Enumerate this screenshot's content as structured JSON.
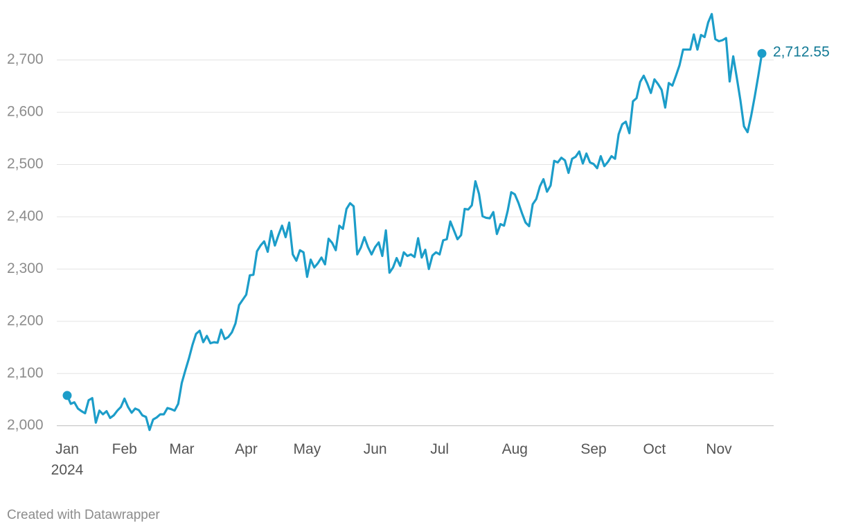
{
  "chart_data": {
    "type": "line",
    "categories": [
      "Jan\n2024",
      null,
      null,
      null,
      null,
      null,
      null,
      null,
      null,
      null,
      null,
      null,
      null,
      null,
      null,
      null,
      "Feb",
      null,
      null,
      null,
      null,
      null,
      null,
      null,
      null,
      null,
      null,
      null,
      null,
      null,
      null,
      null,
      "Mar",
      null,
      null,
      null,
      null,
      null,
      null,
      null,
      null,
      null,
      null,
      null,
      null,
      null,
      null,
      null,
      null,
      null,
      "Apr",
      null,
      null,
      null,
      null,
      null,
      null,
      null,
      null,
      null,
      null,
      null,
      null,
      null,
      null,
      null,
      null,
      "May",
      null,
      null,
      null,
      null,
      null,
      null,
      null,
      null,
      null,
      null,
      null,
      null,
      null,
      null,
      null,
      null,
      null,
      null,
      "Jun",
      null,
      null,
      null,
      null,
      null,
      null,
      null,
      null,
      null,
      null,
      null,
      null,
      null,
      null,
      null,
      null,
      null,
      "Jul",
      null,
      null,
      null,
      null,
      null,
      null,
      null,
      null,
      null,
      null,
      null,
      null,
      null,
      null,
      null,
      null,
      null,
      null,
      null,
      null,
      "Aug",
      null,
      null,
      null,
      null,
      null,
      null,
      null,
      null,
      null,
      null,
      null,
      null,
      null,
      null,
      null,
      null,
      null,
      null,
      null,
      null,
      null,
      "Sep",
      null,
      null,
      null,
      null,
      null,
      null,
      null,
      null,
      null,
      null,
      null,
      null,
      null,
      null,
      null,
      null,
      "Oct",
      null,
      null,
      null,
      null,
      null,
      null,
      null,
      null,
      null,
      null,
      null,
      null,
      null,
      null,
      null,
      null,
      null,
      "Nov",
      null,
      null,
      null,
      null,
      null,
      null,
      null,
      null,
      null,
      null,
      null,
      null
    ],
    "series": [
      {
        "color": "#1c9dc9",
        "label_color": "#137a96",
        "values": [
          2058,
          2042,
          2045,
          2033,
          2028,
          2024,
          2049,
          2053,
          2006,
          2029,
          2022,
          2028,
          2015,
          2020,
          2029,
          2036,
          2052,
          2036,
          2025,
          2033,
          2030,
          2020,
          2017,
          1992,
          2012,
          2016,
          2022,
          2022,
          2034,
          2032,
          2029,
          2042,
          2082,
          2106,
          2129,
          2155,
          2176,
          2182,
          2160,
          2172,
          2158,
          2160,
          2159,
          2184,
          2166,
          2170,
          2179,
          2196,
          2231,
          2241,
          2251,
          2288,
          2289,
          2334,
          2345,
          2353,
          2333,
          2373,
          2345,
          2365,
          2383,
          2361,
          2389,
          2328,
          2316,
          2336,
          2332,
          2285,
          2318,
          2303,
          2311,
          2322,
          2309,
          2358,
          2350,
          2336,
          2383,
          2377,
          2415,
          2426,
          2420,
          2328,
          2341,
          2361,
          2342,
          2328,
          2342,
          2351,
          2325,
          2374,
          2293,
          2303,
          2321,
          2306,
          2332,
          2325,
          2328,
          2323,
          2359,
          2322,
          2337,
          2300,
          2326,
          2332,
          2328,
          2355,
          2357,
          2391,
          2374,
          2357,
          2365,
          2415,
          2414,
          2422,
          2468,
          2444,
          2401,
          2398,
          2397,
          2409,
          2367,
          2386,
          2383,
          2411,
          2447,
          2443,
          2427,
          2407,
          2389,
          2382,
          2424,
          2434,
          2458,
          2472,
          2448,
          2460,
          2507,
          2504,
          2513,
          2508,
          2484,
          2511,
          2515,
          2525,
          2502,
          2521,
          2504,
          2501,
          2493,
          2516,
          2497,
          2505,
          2516,
          2511,
          2558,
          2577,
          2582,
          2560,
          2621,
          2627,
          2658,
          2670,
          2655,
          2637,
          2663,
          2654,
          2643,
          2609,
          2656,
          2651,
          2670,
          2690,
          2720,
          2720,
          2720,
          2749,
          2720,
          2748,
          2744,
          2772,
          2788,
          2740,
          2736,
          2738,
          2742,
          2659,
          2707,
          2666,
          2623,
          2573,
          2562,
          2593,
          2630,
          2670,
          2712.55
        ],
        "value_labels": [
          null,
          null,
          null,
          null,
          null,
          null,
          null,
          null,
          null,
          null,
          null,
          null,
          null,
          null,
          null,
          null,
          null,
          null,
          null,
          null,
          null,
          null,
          null,
          null,
          null,
          null,
          null,
          null,
          null,
          null,
          null,
          null,
          null,
          null,
          null,
          null,
          null,
          null,
          null,
          null,
          null,
          null,
          null,
          null,
          null,
          null,
          null,
          null,
          null,
          null,
          null,
          null,
          null,
          null,
          null,
          null,
          null,
          null,
          null,
          null,
          null,
          null,
          null,
          null,
          null,
          null,
          null,
          null,
          null,
          null,
          null,
          null,
          null,
          null,
          null,
          null,
          null,
          null,
          null,
          null,
          null,
          null,
          null,
          null,
          null,
          null,
          null,
          null,
          null,
          null,
          null,
          null,
          null,
          null,
          null,
          null,
          null,
          null,
          null,
          null,
          null,
          null,
          null,
          null,
          null,
          null,
          null,
          null,
          null,
          null,
          null,
          null,
          null,
          null,
          null,
          null,
          null,
          null,
          null,
          null,
          null,
          null,
          null,
          null,
          null,
          null,
          null,
          null,
          null,
          null,
          null,
          null,
          null,
          null,
          null,
          null,
          null,
          null,
          null,
          null,
          null,
          null,
          null,
          null,
          null,
          null,
          null,
          null,
          null,
          null,
          null,
          null,
          null,
          null,
          null,
          null,
          null,
          null,
          null,
          null,
          null,
          null,
          null,
          null,
          null,
          null,
          null,
          null,
          null,
          null,
          null,
          null,
          null,
          null,
          null,
          null,
          null,
          null,
          null,
          null,
          null,
          null,
          null,
          null,
          null,
          null,
          null,
          null,
          null,
          null,
          null,
          null,
          null,
          null,
          "2,712.55"
        ]
      }
    ],
    "ylim": [
      1985,
      2795
    ],
    "yticks": [
      {
        "value": 2000,
        "label": "2,000"
      },
      {
        "value": 2100,
        "label": "2,100"
      },
      {
        "value": 2200,
        "label": "2,200"
      },
      {
        "value": 2300,
        "label": "2,300"
      },
      {
        "value": 2400,
        "label": "2,400"
      },
      {
        "value": 2500,
        "label": "2,500"
      },
      {
        "value": 2600,
        "label": "2,600"
      },
      {
        "value": 2700,
        "label": "2,700"
      }
    ],
    "grid": true,
    "credit": "Created with Datawrapper"
  }
}
